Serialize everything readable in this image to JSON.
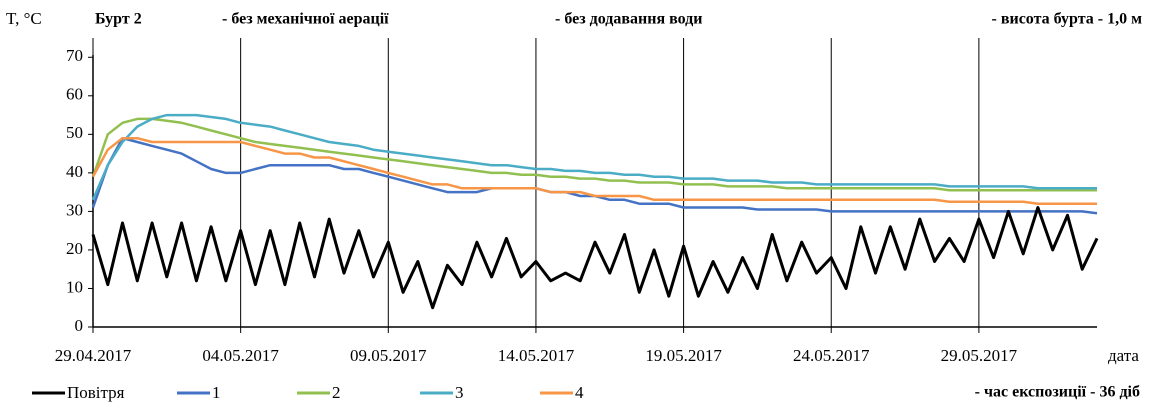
{
  "chart_data": {
    "type": "line",
    "title": "Бурт 2",
    "annotations": [
      "- без механічної аерації",
      "- без додавання води",
      "- висота бурта - 1,0 м",
      "- час експозиції - 36 діб"
    ],
    "ylabel": "T, °C",
    "xlabel": "дата",
    "x": [
      "2017-04-29T00:00",
      "2017-04-29T12:00",
      "2017-04-30T00:00",
      "2017-04-30T12:00",
      "2017-05-01T00:00",
      "2017-05-01T12:00",
      "2017-05-02T00:00",
      "2017-05-02T12:00",
      "2017-05-03T00:00",
      "2017-05-03T12:00",
      "2017-05-04T00:00",
      "2017-05-04T12:00",
      "2017-05-05T00:00",
      "2017-05-05T12:00",
      "2017-05-06T00:00",
      "2017-05-06T12:00",
      "2017-05-07T00:00",
      "2017-05-07T12:00",
      "2017-05-08T00:00",
      "2017-05-08T12:00",
      "2017-05-09T00:00",
      "2017-05-09T12:00",
      "2017-05-10T00:00",
      "2017-05-10T12:00",
      "2017-05-11T00:00",
      "2017-05-11T12:00",
      "2017-05-12T00:00",
      "2017-05-12T12:00",
      "2017-05-13T00:00",
      "2017-05-13T12:00",
      "2017-05-14T00:00",
      "2017-05-14T12:00",
      "2017-05-15T00:00",
      "2017-05-15T12:00",
      "2017-05-16T00:00",
      "2017-05-16T12:00",
      "2017-05-17T00:00",
      "2017-05-17T12:00",
      "2017-05-18T00:00",
      "2017-05-18T12:00",
      "2017-05-19T00:00",
      "2017-05-19T12:00",
      "2017-05-20T00:00",
      "2017-05-20T12:00",
      "2017-05-21T00:00",
      "2017-05-21T12:00",
      "2017-05-22T00:00",
      "2017-05-22T12:00",
      "2017-05-23T00:00",
      "2017-05-23T12:00",
      "2017-05-24T00:00",
      "2017-05-24T12:00",
      "2017-05-25T00:00",
      "2017-05-25T12:00",
      "2017-05-26T00:00",
      "2017-05-26T12:00",
      "2017-05-27T00:00",
      "2017-05-27T12:00",
      "2017-05-28T00:00",
      "2017-05-28T12:00",
      "2017-05-29T00:00",
      "2017-05-29T12:00",
      "2017-05-30T00:00",
      "2017-05-30T12:00",
      "2017-05-31T00:00",
      "2017-05-31T12:00",
      "2017-06-01T00:00",
      "2017-06-01T12:00",
      "2017-06-02T00:00"
    ],
    "series": [
      {
        "name": "Повітря",
        "color": "#000000",
        "values": [
          24,
          11,
          27,
          12,
          27,
          13,
          27,
          12,
          26,
          12,
          25,
          11,
          25,
          11,
          27,
          13,
          28,
          14,
          25,
          13,
          22,
          9,
          17,
          5,
          16,
          11,
          22,
          13,
          23,
          13,
          17,
          12,
          14,
          12,
          22,
          14,
          24,
          9,
          20,
          8,
          21,
          8,
          17,
          9,
          18,
          10,
          24,
          12,
          22,
          14,
          18,
          10,
          26,
          14,
          26,
          15,
          28,
          17,
          23,
          17,
          28,
          18,
          30,
          19,
          31,
          20,
          29,
          15,
          23
        ]
      },
      {
        "name": "1",
        "color": "#4472c4",
        "values": [
          31,
          42,
          49,
          48,
          47,
          46,
          45,
          43,
          41,
          40,
          40,
          41,
          42,
          42,
          42,
          42,
          42,
          41,
          41,
          40,
          39,
          38,
          37,
          36,
          35,
          35,
          35,
          36,
          36,
          36,
          36,
          35,
          35,
          34,
          34,
          33,
          33,
          32,
          32,
          32,
          31,
          31,
          31,
          31,
          31,
          30.5,
          30.5,
          30.5,
          30.5,
          30.5,
          30,
          30,
          30,
          30,
          30,
          30,
          30,
          30,
          30,
          30,
          30,
          30,
          30,
          30,
          30,
          30,
          30,
          30,
          29.5
        ]
      },
      {
        "name": "2",
        "color": "#92c050",
        "values": [
          39,
          50,
          53,
          54,
          54,
          53.5,
          53,
          52,
          51,
          50,
          49,
          48,
          47.5,
          47,
          46.5,
          46,
          45.5,
          45,
          44.5,
          44,
          43.5,
          43,
          42.5,
          42,
          41.5,
          41,
          40.5,
          40,
          40,
          39.5,
          39.5,
          39,
          39,
          38.5,
          38.5,
          38,
          38,
          37.5,
          37.5,
          37.5,
          37,
          37,
          37,
          36.5,
          36.5,
          36.5,
          36.5,
          36,
          36,
          36,
          36,
          36,
          36,
          36,
          36,
          36,
          36,
          36,
          35.5,
          35.5,
          35.5,
          35.5,
          35.5,
          35.5,
          35.5,
          35.5,
          35.5,
          35.5,
          35.5
        ]
      },
      {
        "name": "3",
        "color": "#4bacc6",
        "values": [
          33,
          42,
          48,
          52,
          54,
          55,
          55,
          55,
          54.5,
          54,
          53,
          52.5,
          52,
          51,
          50,
          49,
          48,
          47.5,
          47,
          46,
          45.5,
          45,
          44.5,
          44,
          43.5,
          43,
          42.5,
          42,
          42,
          41.5,
          41,
          41,
          40.5,
          40.5,
          40,
          40,
          39.5,
          39.5,
          39,
          39,
          38.5,
          38.5,
          38.5,
          38,
          38,
          38,
          37.5,
          37.5,
          37.5,
          37,
          37,
          37,
          37,
          37,
          37,
          37,
          37,
          37,
          36.5,
          36.5,
          36.5,
          36.5,
          36.5,
          36.5,
          36,
          36,
          36,
          36,
          36
        ]
      },
      {
        "name": "4",
        "color": "#f79646",
        "values": [
          39,
          46,
          49,
          49,
          48,
          48,
          48,
          48,
          48,
          48,
          48,
          47,
          46,
          45,
          45,
          44,
          44,
          43,
          42,
          41,
          40,
          39,
          38,
          37,
          37,
          36,
          36,
          36,
          36,
          36,
          36,
          35,
          35,
          35,
          34,
          34,
          34,
          34,
          33,
          33,
          33,
          33,
          33,
          33,
          33,
          33,
          33,
          33,
          33,
          33,
          33,
          33,
          33,
          33,
          33,
          33,
          33,
          33,
          32.5,
          32.5,
          32.5,
          32.5,
          32.5,
          32.5,
          32,
          32,
          32,
          32,
          32
        ]
      }
    ],
    "xlim": [
      "2017-04-29T00:00",
      "2017-06-02T00:00"
    ],
    "xticks": [
      {
        "value": "2017-04-29T00:00",
        "label": "29.04.2017"
      },
      {
        "value": "2017-05-04T00:00",
        "label": "04.05.2017"
      },
      {
        "value": "2017-05-09T00:00",
        "label": "09.05.2017"
      },
      {
        "value": "2017-05-14T00:00",
        "label": "14.05.2017"
      },
      {
        "value": "2017-05-19T00:00",
        "label": "19.05.2017"
      },
      {
        "value": "2017-05-24T00:00",
        "label": "24.05.2017"
      },
      {
        "value": "2017-05-29T00:00",
        "label": "29.05.2017"
      }
    ],
    "ylim": [
      0,
      75
    ],
    "yticks": [
      0,
      10,
      20,
      30,
      40,
      50,
      60,
      70
    ],
    "grid": "x",
    "legend": "bottom"
  }
}
